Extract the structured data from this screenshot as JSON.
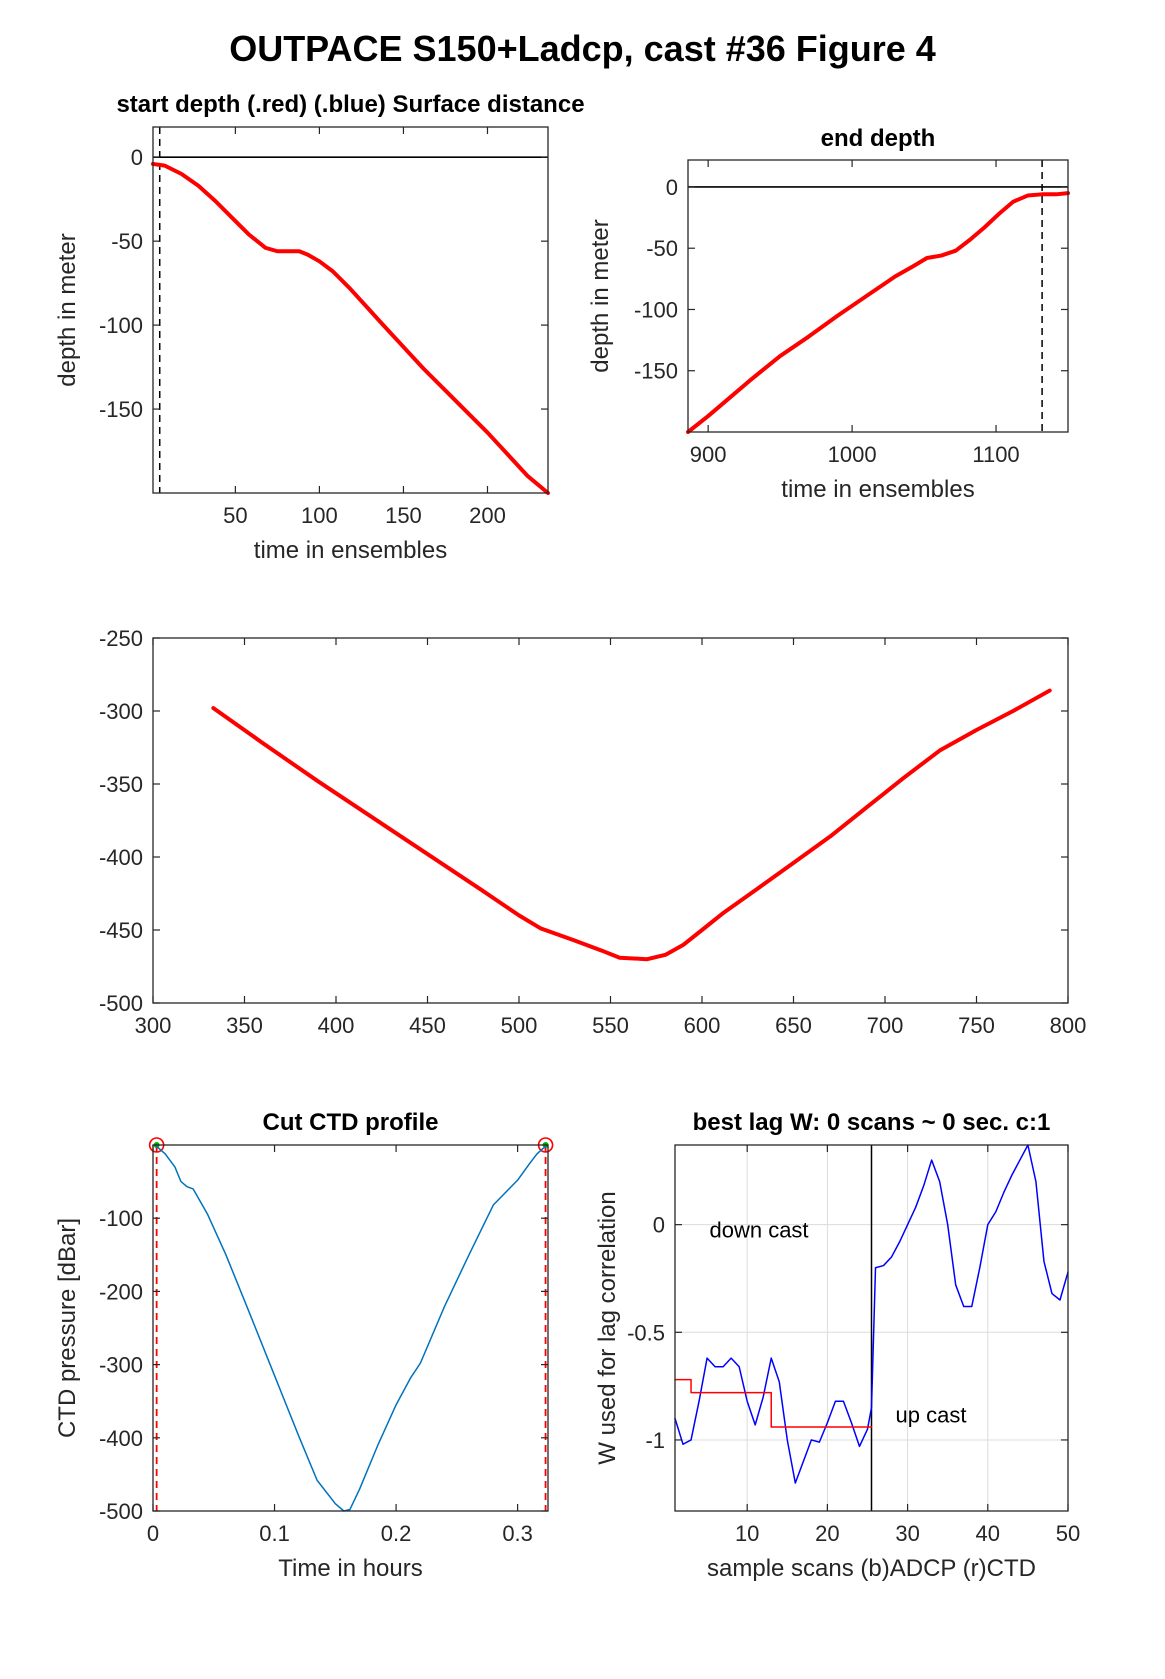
{
  "figure_title": "OUTPACE S150+Ladcp, cast #36   Figure 4",
  "chart_data": [
    {
      "id": "p1",
      "type": "line",
      "title": "start depth (.red) (.blue) Surface distance",
      "xlabel": "time in ensembles",
      "ylabel": "depth in meter",
      "xlim": [
        1,
        236
      ],
      "ylim": [
        -200,
        18
      ],
      "xticks": [
        50,
        100,
        150,
        200
      ],
      "yticks": [
        0,
        -50,
        -100,
        -150
      ],
      "grid": false,
      "zero_line": 0,
      "vline": 5,
      "series": [
        {
          "color": "#ff0000",
          "width": 4,
          "x": [
            1,
            8,
            18,
            28,
            38,
            48,
            58,
            68,
            75,
            82,
            88,
            93,
            100,
            108,
            118,
            128,
            138,
            150,
            162,
            175,
            188,
            200,
            212,
            224,
            236
          ],
          "y": [
            -4,
            -5,
            -10,
            -17,
            -26,
            -36,
            -46,
            -54,
            -56,
            -56,
            -56,
            -58,
            -62,
            -68,
            -78,
            -89,
            -100,
            -113,
            -126,
            -139,
            -152,
            -164,
            -177,
            -190,
            -200
          ]
        }
      ]
    },
    {
      "id": "p2",
      "type": "line",
      "title": "end depth",
      "xlabel": "time in ensembles",
      "ylabel": "depth in meter",
      "xlim": [
        886,
        1150
      ],
      "ylim": [
        -200,
        22
      ],
      "xticks": [
        900,
        1000,
        1100
      ],
      "yticks": [
        0,
        -50,
        -100,
        -150
      ],
      "grid": false,
      "zero_line": 0,
      "vline": 1132,
      "series": [
        {
          "color": "#ff0000",
          "width": 4,
          "x": [
            886,
            900,
            915,
            930,
            950,
            970,
            990,
            1010,
            1030,
            1042,
            1052,
            1062,
            1072,
            1082,
            1092,
            1102,
            1112,
            1122,
            1132,
            1142,
            1150
          ],
          "y": [
            -200,
            -187,
            -172,
            -157,
            -138,
            -122,
            -105,
            -89,
            -73,
            -65,
            -58,
            -56,
            -52,
            -43,
            -33,
            -22,
            -12,
            -7,
            -6,
            -6,
            -5
          ]
        }
      ]
    },
    {
      "id": "p3",
      "type": "line",
      "title": "",
      "xlabel": "",
      "ylabel": "",
      "xlim": [
        300,
        800
      ],
      "ylim": [
        -500,
        -250
      ],
      "xticks": [
        300,
        350,
        400,
        450,
        500,
        550,
        600,
        650,
        700,
        750,
        800
      ],
      "yticks": [
        -250,
        -300,
        -350,
        -400,
        -450,
        -500
      ],
      "grid": false,
      "series": [
        {
          "color": "#ff0000",
          "width": 4,
          "x": [
            333,
            360,
            390,
            420,
            450,
            480,
            500,
            512,
            530,
            545,
            555,
            570,
            580,
            590,
            600,
            612,
            630,
            650,
            670,
            690,
            710,
            730,
            750,
            770,
            790
          ],
          "y": [
            -298,
            -322,
            -348,
            -373,
            -398,
            -423,
            -440,
            -449,
            -457,
            -464,
            -469,
            -470,
            -467,
            -460,
            -450,
            -438,
            -422,
            -404,
            -386,
            -366,
            -346,
            -327,
            -313,
            -300,
            -286
          ]
        }
      ]
    },
    {
      "id": "p4",
      "type": "line",
      "title": "Cut CTD profile",
      "xlabel": "Time in hours",
      "ylabel": "CTD pressure [dBar]",
      "xlim": [
        0,
        0.325
      ],
      "ylim": [
        -500,
        0
      ],
      "xticks": [
        0,
        0.1,
        0.2,
        0.3
      ],
      "yticks": [
        -100,
        -200,
        -300,
        -400,
        -500
      ],
      "grid": false,
      "cut_markers": [
        0.003,
        0.323
      ],
      "series": [
        {
          "color": "#0072bd",
          "width": 1.5,
          "x": [
            0.003,
            0.01,
            0.018,
            0.023,
            0.028,
            0.033,
            0.045,
            0.06,
            0.08,
            0.1,
            0.12,
            0.135,
            0.15,
            0.157,
            0.162,
            0.17,
            0.185,
            0.2,
            0.212,
            0.22,
            0.24,
            0.26,
            0.28,
            0.3,
            0.31,
            0.316,
            0.32,
            0.323
          ],
          "y": [
            -2,
            -12,
            -30,
            -50,
            -57,
            -60,
            -95,
            -150,
            -232,
            -315,
            -398,
            -458,
            -490,
            -500,
            -498,
            -470,
            -410,
            -355,
            -318,
            -298,
            -220,
            -150,
            -82,
            -48,
            -25,
            -12,
            -6,
            -2
          ]
        }
      ]
    },
    {
      "id": "p5",
      "type": "line",
      "title": "best lag W: 0 scans ~ 0 sec.  c:1",
      "xlabel": "sample scans (b)ADCP (r)CTD",
      "ylabel": "W used for lag correlation",
      "xlim": [
        1,
        50
      ],
      "ylim": [
        -1.33,
        0.37
      ],
      "xticks": [
        10,
        20,
        30,
        40,
        50
      ],
      "yticks": [
        0,
        -0.5,
        -1
      ],
      "grid": true,
      "vline": 25.5,
      "annotations": [
        "down cast",
        "up cast"
      ],
      "series": [
        {
          "color": "#0000ff",
          "width": 1.5,
          "x": [
            1,
            2,
            3,
            4,
            5,
            6,
            7,
            8,
            9,
            10,
            11,
            12,
            13,
            14,
            15,
            16,
            17,
            18,
            19,
            20,
            21,
            22,
            23,
            24,
            25,
            25.5,
            26,
            27,
            28,
            29,
            30,
            31,
            32,
            33,
            34,
            35,
            36,
            37,
            38,
            39,
            40,
            41,
            42,
            43,
            44,
            45,
            46,
            47,
            48,
            49,
            50
          ],
          "y": [
            -0.9,
            -1.02,
            -1.0,
            -0.82,
            -0.62,
            -0.66,
            -0.66,
            -0.62,
            -0.66,
            -0.82,
            -0.93,
            -0.8,
            -0.62,
            -0.73,
            -1.0,
            -1.2,
            -1.1,
            -1.0,
            -1.01,
            -0.92,
            -0.82,
            -0.82,
            -0.92,
            -1.03,
            -0.95,
            -0.85,
            -0.2,
            -0.19,
            -0.15,
            -0.08,
            0.0,
            0.08,
            0.18,
            0.3,
            0.2,
            0.0,
            -0.28,
            -0.38,
            -0.38,
            -0.2,
            0.0,
            0.06,
            0.15,
            0.23,
            0.3,
            0.37,
            0.2,
            -0.17,
            -0.32,
            -0.35,
            -0.22
          ]
        },
        {
          "color": "#ff0000",
          "width": 1.5,
          "step": true,
          "x": [
            1,
            2,
            3,
            12,
            13,
            25.5
          ],
          "y": [
            -0.72,
            -0.72,
            -0.78,
            -0.78,
            -0.94,
            -0.94
          ]
        }
      ]
    }
  ]
}
